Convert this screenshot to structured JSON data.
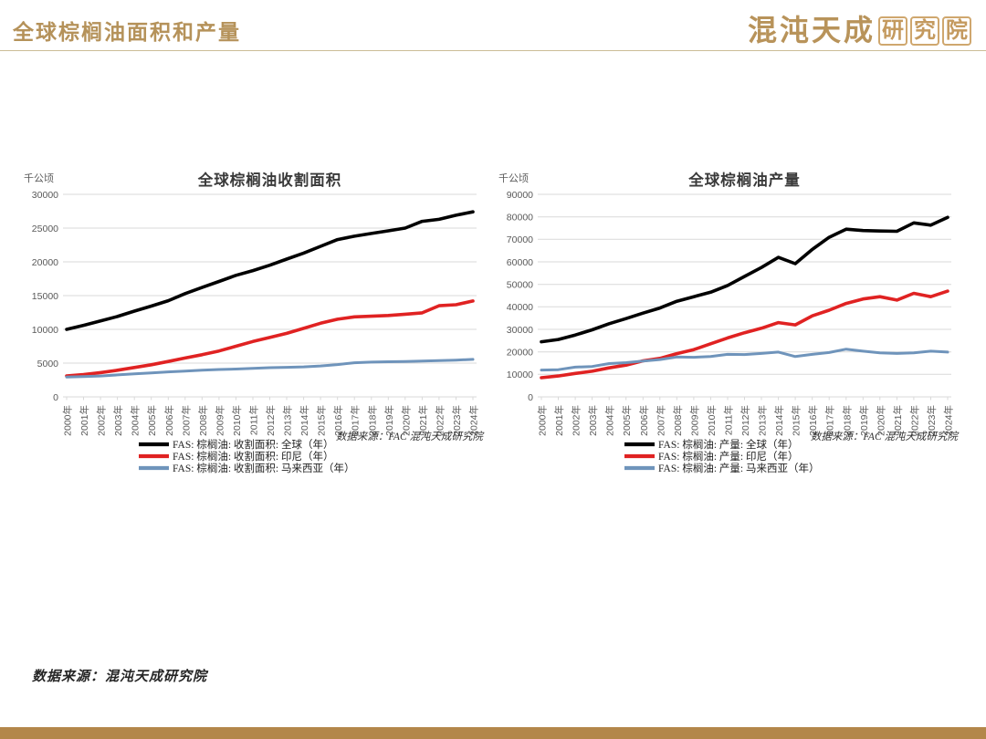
{
  "header": {
    "title": "全球棕榈油面积和产量",
    "logo_main": "混沌天成",
    "logo_box_chars": [
      "研",
      "究",
      "院"
    ]
  },
  "footer": {
    "source_note": "数据来源：混沌天成研究院"
  },
  "colors": {
    "accent_gold": "#b5925a",
    "bottom_bar": "#b3874a",
    "grid": "#d9d9d9",
    "series_global": "#000000",
    "series_indonesia": "#e02222",
    "series_malaysia": "#6f94bb"
  },
  "chart_data": [
    {
      "type": "line",
      "title": "全球棕榈油收割面积",
      "unit": "千公顷",
      "source_note": "数据来源：FAC  混沌天成研究院",
      "ylim": [
        0,
        30000
      ],
      "yticks": [
        0,
        5000,
        10000,
        15000,
        20000,
        25000,
        30000
      ],
      "grid": true,
      "legend_position": "bottom-left",
      "x": [
        "2000年",
        "2001年",
        "2002年",
        "2003年",
        "2004年",
        "2005年",
        "2006年",
        "2007年",
        "2008年",
        "2009年",
        "2010年",
        "2011年",
        "2012年",
        "2013年",
        "2014年",
        "2015年",
        "2016年",
        "2017年",
        "2018年",
        "2019年",
        "2020年",
        "2021年",
        "2022年",
        "2023年",
        "2024年"
      ],
      "series": [
        {
          "name": "FAS: 棕榈油: 收割面积: 全球（年）",
          "color": "#000000",
          "values": [
            10000,
            10600,
            11250,
            11900,
            12700,
            13450,
            14250,
            15300,
            16200,
            17100,
            18000,
            18700,
            19500,
            20400,
            21300,
            22300,
            23300,
            23800,
            24200,
            24600,
            25000,
            26000,
            26300,
            26900,
            27400
          ]
        },
        {
          "name": "FAS: 棕榈油: 收割面积: 印尼（年）",
          "color": "#e02222",
          "values": [
            3100,
            3300,
            3600,
            3950,
            4350,
            4750,
            5250,
            5750,
            6250,
            6800,
            7500,
            8200,
            8800,
            9400,
            10150,
            10900,
            11500,
            11850,
            11950,
            12050,
            12250,
            12450,
            13500,
            13650,
            14200
          ]
        },
        {
          "name": "FAS: 棕榈油: 收割面积: 马来西亚（年）",
          "color": "#6f94bb",
          "values": [
            2950,
            3000,
            3100,
            3250,
            3400,
            3550,
            3700,
            3820,
            3950,
            4050,
            4120,
            4220,
            4320,
            4380,
            4450,
            4580,
            4780,
            5050,
            5150,
            5200,
            5250,
            5300,
            5380,
            5450,
            5560
          ]
        }
      ]
    },
    {
      "type": "line",
      "title": "全球棕榈油产量",
      "unit": "千公顷",
      "source_note": "数据来源：FAC  混沌天成研究院",
      "ylim": [
        0,
        90000
      ],
      "yticks": [
        0,
        10000,
        20000,
        30000,
        40000,
        50000,
        60000,
        70000,
        80000,
        90000
      ],
      "grid": true,
      "legend_position": "bottom-left",
      "x": [
        "2000年",
        "2001年",
        "2002年",
        "2003年",
        "2004年",
        "2005年",
        "2006年",
        "2007年",
        "2008年",
        "2009年",
        "2010年",
        "2011年",
        "2012年",
        "2013年",
        "2014年",
        "2015年",
        "2016年",
        "2017年",
        "2018年",
        "2019年",
        "2020年",
        "2021年",
        "2022年",
        "2023年",
        "2024年"
      ],
      "series": [
        {
          "name": "FAS: 棕榈油: 产量: 全球（年）",
          "color": "#000000",
          "values": [
            24500,
            25500,
            27500,
            29800,
            32500,
            34800,
            37200,
            39500,
            42500,
            44500,
            46500,
            49500,
            53500,
            57500,
            62000,
            59200,
            65500,
            70900,
            74500,
            73900,
            73700,
            73600,
            77300,
            76300,
            79800
          ]
        },
        {
          "name": "FAS: 棕榈油: 产量: 印尼（年）",
          "color": "#e02222",
          "values": [
            8500,
            9300,
            10400,
            11400,
            12900,
            14100,
            16000,
            17100,
            19200,
            21000,
            23600,
            26200,
            28500,
            30500,
            33000,
            32000,
            36000,
            38500,
            41500,
            43500,
            44500,
            43000,
            46000,
            44500,
            47000
          ]
        },
        {
          "name": "FAS: 棕榈油: 产量: 马来西亚（年）",
          "color": "#6f94bb",
          "values": [
            11900,
            12100,
            13200,
            13500,
            14800,
            15200,
            15900,
            16600,
            17700,
            17600,
            17900,
            18900,
            18800,
            19300,
            19900,
            17900,
            18900,
            19700,
            21200,
            20300,
            19600,
            19300,
            19600,
            20300,
            19900
          ]
        }
      ]
    }
  ]
}
